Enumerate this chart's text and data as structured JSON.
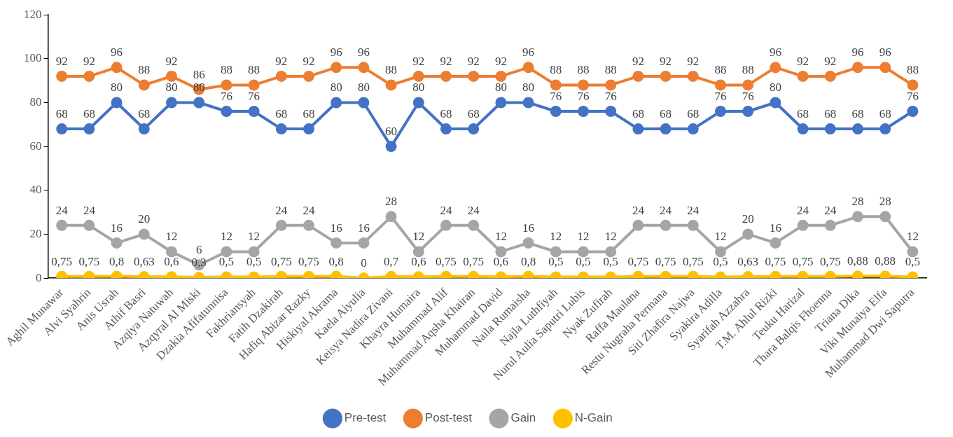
{
  "chart_data": {
    "type": "line",
    "categories": [
      "Aghil Munawar",
      "Alvi Syahrin",
      "Anis Usrah",
      "Athif Basri",
      "Azqiya Natuwah",
      "Azqyral Al Miski",
      "Dzakia Afifatunnisa",
      "Fakhriansyah",
      "Fatih Dzakirah",
      "Hafiq Abizar Razky",
      "Hiskiyal Akrama",
      "Kaela Aiyulia",
      "Keisya Nadira Zivani",
      "Khayra Humaira",
      "Muhammad Alif",
      "Muhammad Aqsha Khairan",
      "Muhammad David",
      "Naila Rumaisha",
      "Najla Luthfiyah",
      "Nurul Aulia Saputri Lubis",
      "Nyak Zufirah",
      "Raffa Maulana",
      "Restu Nugraha Permana",
      "Siti Zhafira Najwa",
      "Syakira Adilla",
      "Syarifah Azzahra",
      "T.M. Ahlul Rizki",
      "Teuku Harizal",
      "Thara Balqis Fhoenna",
      "Triana Dika",
      "Viki Munaiya Elfa",
      "Muhammad Dwi Saputra"
    ],
    "series": [
      {
        "name": "Pre-test",
        "color": "#4472c4",
        "values": [
          68,
          68,
          80,
          68,
          80,
          80,
          76,
          76,
          68,
          68,
          80,
          80,
          60,
          80,
          68,
          68,
          80,
          80,
          76,
          76,
          76,
          68,
          68,
          68,
          76,
          76,
          80,
          68,
          68,
          68,
          68,
          76
        ]
      },
      {
        "name": "Post-test",
        "color": "#ed7d31",
        "values": [
          92,
          92,
          96,
          88,
          92,
          86,
          88,
          88,
          92,
          92,
          96,
          96,
          88,
          92,
          92,
          92,
          92,
          96,
          88,
          88,
          88,
          92,
          92,
          92,
          88,
          88,
          96,
          92,
          92,
          96,
          96,
          88
        ]
      },
      {
        "name": "Gain",
        "color": "#a5a5a5",
        "values": [
          24,
          24,
          16,
          20,
          12,
          6,
          12,
          12,
          24,
          24,
          16,
          16,
          28,
          12,
          24,
          24,
          12,
          16,
          12,
          12,
          12,
          24,
          24,
          24,
          12,
          20,
          16,
          24,
          24,
          28,
          28,
          12
        ]
      },
      {
        "name": "N-Gain",
        "color": "#ffc000",
        "values": [
          0.75,
          0.75,
          0.8,
          0.63,
          0.6,
          0.3,
          0.5,
          0.5,
          0.75,
          0.75,
          0.8,
          0,
          0.7,
          0.6,
          0.75,
          0.75,
          0.6,
          0.8,
          0.5,
          0.5,
          0.5,
          0.75,
          0.75,
          0.75,
          0.5,
          0.63,
          0.75,
          0.75,
          0.75,
          0.88,
          0.88,
          0.5
        ],
        "value_labels": [
          "0,75",
          "0,75",
          "0,8",
          "0,63",
          "0,6",
          "0,3",
          "0,5",
          "0,5",
          "0,75",
          "0,75",
          "0,8",
          "0",
          "0,7",
          "0,6",
          "0,75",
          "0,75",
          "0,6",
          "0,8",
          "0,5",
          "0,5",
          "0,5",
          "0,75",
          "0,75",
          "0,75",
          "0,5",
          "0,63",
          "0,75",
          "0,75",
          "0,75",
          "0,88",
          "0,88",
          "0,5"
        ]
      }
    ],
    "ylim": [
      0,
      120
    ],
    "yticks": [
      0,
      20,
      40,
      60,
      80,
      100,
      120
    ],
    "grid": false,
    "legend": "bottom",
    "marker": "circle",
    "line_style": "solid",
    "data_labels": true
  }
}
